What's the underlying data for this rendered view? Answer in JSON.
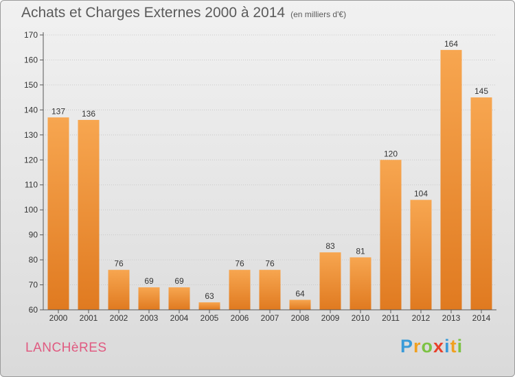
{
  "title": "Achats et Charges Externes 2000 à 2014",
  "unit_note": "(en milliers d'€)",
  "place": "LANCHèRES",
  "brand": {
    "letters": [
      "P",
      "r",
      "o",
      "x",
      "i",
      "t",
      "i"
    ]
  },
  "colors": {
    "bar_top": "#f7a650",
    "bar_bottom": "#e07a20",
    "axis": "#555555",
    "grid": "#c8c8c8"
  },
  "chart_data": {
    "type": "bar",
    "categories": [
      "2000",
      "2001",
      "2002",
      "2003",
      "2004",
      "2005",
      "2006",
      "2007",
      "2008",
      "2009",
      "2010",
      "2011",
      "2012",
      "2013",
      "2014"
    ],
    "values": [
      137,
      136,
      76,
      69,
      69,
      63,
      76,
      76,
      64,
      83,
      81,
      120,
      104,
      164,
      145
    ],
    "ylim": [
      60,
      170
    ],
    "yticks": [
      60,
      70,
      80,
      90,
      100,
      110,
      120,
      130,
      140,
      150,
      160,
      170
    ],
    "title": "Achats et Charges Externes 2000 à 2014",
    "xlabel": "",
    "ylabel": "",
    "grid": true,
    "data_labels": true
  }
}
